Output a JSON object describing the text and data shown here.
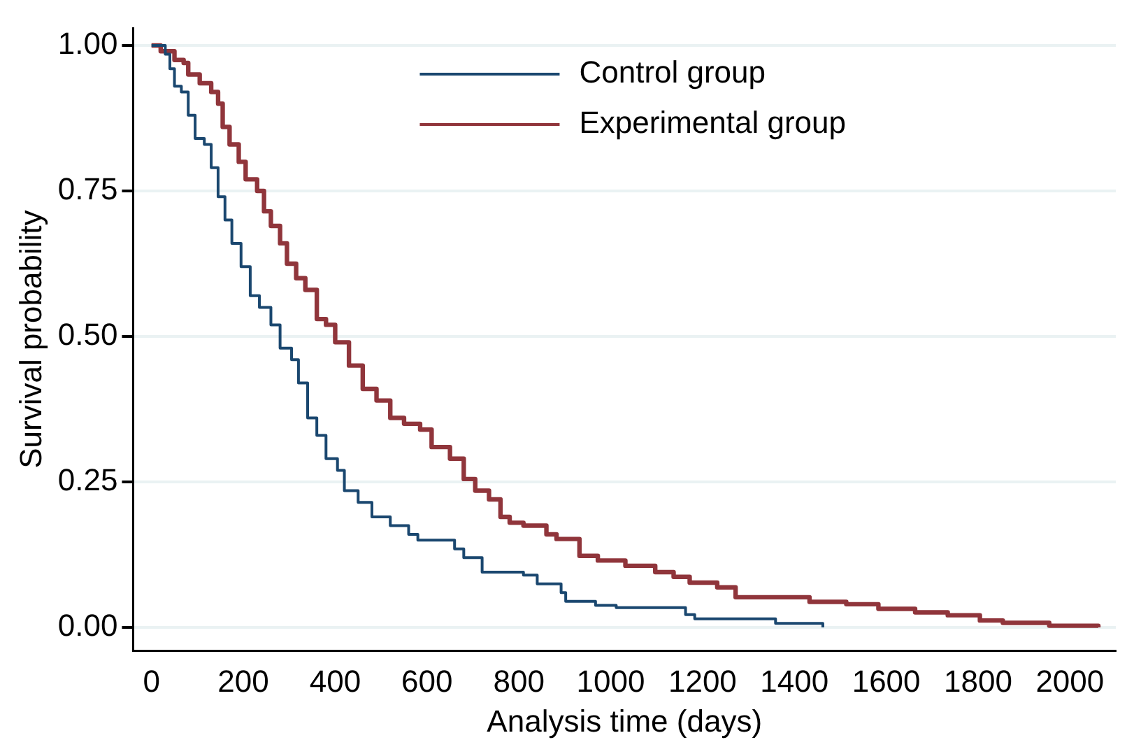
{
  "chart_data": {
    "type": "step",
    "xlabel": "Analysis time (days)",
    "ylabel": "Survival probability",
    "xlim": [
      -40,
      2100
    ],
    "xticks": [
      0,
      200,
      400,
      600,
      800,
      1000,
      1200,
      1400,
      1600,
      1800,
      2000
    ],
    "ylim": [
      -0.04,
      1.03
    ],
    "yticks": [
      {
        "value": 0,
        "label": "0.00"
      },
      {
        "value": 0.25,
        "label": "0.25"
      },
      {
        "value": 0.5,
        "label": "0.50"
      },
      {
        "value": 0.75,
        "label": "0.75"
      },
      {
        "value": 1,
        "label": "1.00"
      }
    ],
    "grid": "y",
    "legend": "top",
    "marker": "none",
    "line_style": "solid",
    "series": [
      {
        "name": "Control group",
        "color": "#1a476f",
        "x": [
          0,
          30,
          40,
          50,
          65,
          80,
          95,
          115,
          130,
          145,
          160,
          175,
          195,
          215,
          235,
          260,
          280,
          305,
          320,
          340,
          360,
          380,
          405,
          420,
          450,
          480,
          520,
          560,
          580,
          660,
          680,
          720,
          810,
          840,
          892,
          902,
          967,
          1012,
          1163,
          1183,
          1359,
          1462
        ],
        "values": [
          1.0,
          0.985,
          0.96,
          0.93,
          0.92,
          0.88,
          0.84,
          0.83,
          0.79,
          0.74,
          0.7,
          0.66,
          0.62,
          0.57,
          0.55,
          0.52,
          0.48,
          0.46,
          0.42,
          0.36,
          0.33,
          0.29,
          0.27,
          0.235,
          0.215,
          0.19,
          0.175,
          0.16,
          0.15,
          0.135,
          0.12,
          0.095,
          0.09,
          0.075,
          0.06,
          0.045,
          0.038,
          0.034,
          0.022,
          0.015,
          0.007,
          0.0
        ]
      },
      {
        "name": "Experimental group",
        "color": "#90353b",
        "x": [
          0,
          20,
          50,
          70,
          80,
          105,
          130,
          145,
          155,
          170,
          190,
          205,
          230,
          245,
          260,
          280,
          295,
          315,
          335,
          360,
          380,
          400,
          430,
          460,
          490,
          520,
          550,
          585,
          610,
          650,
          680,
          705,
          735,
          760,
          780,
          810,
          860,
          882,
          932,
          972,
          1032,
          1097,
          1137,
          1172,
          1232,
          1272,
          1433,
          1513,
          1583,
          1663,
          1734,
          1804,
          1854,
          1955,
          2062
        ],
        "values": [
          1.0,
          0.99,
          0.975,
          0.97,
          0.95,
          0.935,
          0.92,
          0.9,
          0.86,
          0.83,
          0.8,
          0.77,
          0.75,
          0.715,
          0.69,
          0.66,
          0.625,
          0.6,
          0.58,
          0.53,
          0.52,
          0.49,
          0.45,
          0.41,
          0.39,
          0.36,
          0.35,
          0.34,
          0.31,
          0.29,
          0.255,
          0.235,
          0.22,
          0.19,
          0.18,
          0.175,
          0.16,
          0.152,
          0.123,
          0.115,
          0.106,
          0.095,
          0.087,
          0.077,
          0.069,
          0.052,
          0.044,
          0.04,
          0.032,
          0.026,
          0.021,
          0.012,
          0.008,
          0.003,
          0.0
        ]
      }
    ]
  }
}
